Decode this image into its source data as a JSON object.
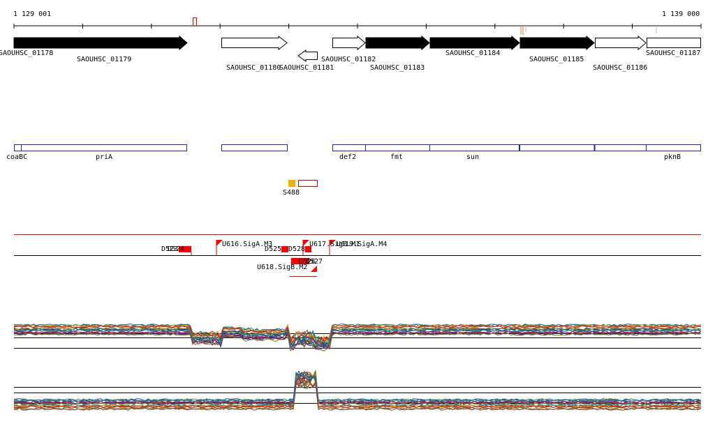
{
  "axis": {
    "start_label": "1 129 001",
    "end_label": "1 139 000",
    "start": 1129001,
    "end": 1139000
  },
  "genes": [
    {
      "id": "SAOUHSC_01178",
      "strand": "+",
      "filled": true,
      "from": 1129001,
      "to": 1129110
    },
    {
      "id": "SAOUHSC_01179",
      "strand": "+",
      "filled": true,
      "from": 1129110,
      "to": 1131550
    },
    {
      "id": "SAOUHSC_01180",
      "strand": "+",
      "filled": false,
      "from": 1132000,
      "to": 1132980
    },
    {
      "id": "SAOUHSC_01181",
      "strand": "-",
      "filled": false,
      "from": 1133080,
      "to": 1133360
    },
    {
      "id": "SAOUHSC_01182",
      "strand": "+",
      "filled": false,
      "from": 1133620,
      "to": 1134100
    },
    {
      "id": "SAOUHSC_01183",
      "strand": "+",
      "filled": true,
      "from": 1134100,
      "to": 1135040
    },
    {
      "id": "SAOUHSC_01184",
      "strand": "+",
      "filled": true,
      "from": 1135040,
      "to": 1136330
    },
    {
      "id": "SAOUHSC_01185",
      "strand": "+",
      "filled": true,
      "from": 1136330,
      "to": 1137420
    },
    {
      "id": "SAOUHSC_01186",
      "strand": "+",
      "filled": false,
      "from": 1137420,
      "to": 1138180
    },
    {
      "id": "SAOUHSC_01187",
      "strand": "+",
      "filled": false,
      "from": 1138180,
      "to": 1139000
    }
  ],
  "gene_names": [
    "coaBC",
    "priA",
    "def2",
    "fmt",
    "sun",
    "pknB"
  ],
  "s_feature": {
    "label": "S488"
  },
  "tss": [
    {
      "label": "U616.SigA.M3"
    },
    {
      "label": "U617.SigB.M1"
    },
    {
      "label": "U619.SigA.M4"
    },
    {
      "label": "U618.SigB.M2"
    },
    {
      "label": "D523"
    },
    {
      "label": "D524"
    },
    {
      "label": "D525"
    },
    {
      "label": "D528"
    },
    {
      "label": "D526"
    },
    {
      "label": "D527"
    }
  ],
  "colors": {
    "gene_fill": "#000000",
    "gene_outline": "#000000",
    "operon_outline": "#1f1fb4",
    "tss": "#ff0000",
    "s_feature": "#f0b400",
    "track_line": "#000000"
  }
}
